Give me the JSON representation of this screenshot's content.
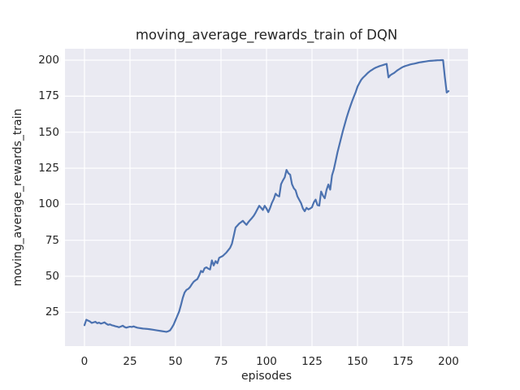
{
  "chart_data": {
    "type": "line",
    "title": "moving_average_rewards_train of DQN",
    "xlabel": "episodes",
    "ylabel": "moving_average_rewards_train",
    "xlim": [
      -10.7,
      210.7
    ],
    "ylim": [
      1.5,
      207.9
    ],
    "xticks": [
      0,
      25,
      50,
      75,
      100,
      125,
      150,
      175,
      200
    ],
    "yticks": [
      25,
      50,
      75,
      100,
      125,
      150,
      175,
      200
    ],
    "grid": true,
    "legend": "none",
    "colors": {
      "figure_background": "#FFFFFF",
      "axes_background": "#EAEAF2",
      "grid_color": "#FFFFFF",
      "line_color": "#4C72B0",
      "text_color": "#262626"
    },
    "series": [
      {
        "name": "DQN",
        "color": "#4C72B0",
        "points": [
          [
            0,
            16
          ],
          [
            1,
            19.8
          ],
          [
            2,
            19.2
          ],
          [
            3,
            18.6
          ],
          [
            4,
            17.6
          ],
          [
            5,
            18.0
          ],
          [
            6,
            18.4
          ],
          [
            7,
            17.4
          ],
          [
            8,
            17.8
          ],
          [
            9,
            17.1
          ],
          [
            10,
            17.5
          ],
          [
            11,
            18.0
          ],
          [
            12,
            17.0
          ],
          [
            13,
            16.3
          ],
          [
            14,
            16.6
          ],
          [
            15,
            16.0
          ],
          [
            16,
            15.7
          ],
          [
            17,
            15.3
          ],
          [
            18,
            15.0
          ],
          [
            19,
            14.6
          ],
          [
            20,
            15.1
          ],
          [
            21,
            15.7
          ],
          [
            22,
            14.8
          ],
          [
            23,
            14.3
          ],
          [
            24,
            14.7
          ],
          [
            25,
            15.0
          ],
          [
            26,
            14.8
          ],
          [
            27,
            15.2
          ],
          [
            28,
            14.7
          ],
          [
            29,
            14.3
          ],
          [
            30,
            14.1
          ],
          [
            31,
            13.9
          ],
          [
            32,
            13.7
          ],
          [
            33,
            13.6
          ],
          [
            34,
            13.5
          ],
          [
            36,
            13.2
          ],
          [
            38,
            12.8
          ],
          [
            40,
            12.4
          ],
          [
            42,
            12.0
          ],
          [
            44,
            11.6
          ],
          [
            45,
            11.4
          ],
          [
            46,
            11.8
          ],
          [
            47,
            12.4
          ],
          [
            48,
            14.3
          ],
          [
            49,
            16.5
          ],
          [
            50,
            19.5
          ],
          [
            51,
            22.5
          ],
          [
            52,
            25.5
          ],
          [
            53,
            30.0
          ],
          [
            54,
            35.0
          ],
          [
            55,
            38.7
          ],
          [
            56,
            40.5
          ],
          [
            57,
            41.2
          ],
          [
            58,
            42.5
          ],
          [
            59,
            44.5
          ],
          [
            60,
            46.2
          ],
          [
            61,
            47.2
          ],
          [
            62,
            48.0
          ],
          [
            63,
            50.5
          ],
          [
            64,
            53.7
          ],
          [
            65,
            52.8
          ],
          [
            66,
            55.6
          ],
          [
            67,
            56.2
          ],
          [
            68,
            55.3
          ],
          [
            69,
            54.7
          ],
          [
            70,
            61.0
          ],
          [
            71,
            57.5
          ],
          [
            72,
            60.5
          ],
          [
            73,
            59.0
          ],
          [
            74,
            62.8
          ],
          [
            76,
            64.1
          ],
          [
            78,
            66.5
          ],
          [
            80,
            69.7
          ],
          [
            81,
            72.5
          ],
          [
            82,
            78.0
          ],
          [
            83,
            83.8
          ],
          [
            84,
            85.2
          ],
          [
            85,
            86.6
          ],
          [
            86,
            87.5
          ],
          [
            87,
            88.5
          ],
          [
            88,
            87.0
          ],
          [
            89,
            85.7
          ],
          [
            90,
            87.5
          ],
          [
            91,
            89.0
          ],
          [
            92,
            90.4
          ],
          [
            93,
            92.0
          ],
          [
            94,
            94.1
          ],
          [
            95,
            96.5
          ],
          [
            96,
            98.9
          ],
          [
            97,
            97.5
          ],
          [
            98,
            96.0
          ],
          [
            99,
            98.9
          ],
          [
            100,
            97.0
          ],
          [
            101,
            94.5
          ],
          [
            102,
            97.5
          ],
          [
            103,
            101.0
          ],
          [
            104,
            103.6
          ],
          [
            105,
            107.3
          ],
          [
            106,
            106.0
          ],
          [
            107,
            105.4
          ],
          [
            108,
            113.9
          ],
          [
            109,
            116.5
          ],
          [
            110,
            118.6
          ],
          [
            111,
            123.8
          ],
          [
            112,
            121.5
          ],
          [
            113,
            120.5
          ],
          [
            114,
            113.9
          ],
          [
            115,
            111.1
          ],
          [
            116,
            109.6
          ],
          [
            117,
            105.4
          ],
          [
            118,
            103.0
          ],
          [
            119,
            100.7
          ],
          [
            120,
            97.0
          ],
          [
            121,
            95.1
          ],
          [
            122,
            97.5
          ],
          [
            123,
            96.4
          ],
          [
            124,
            97.0
          ],
          [
            125,
            97.9
          ],
          [
            126,
            101.3
          ],
          [
            127,
            103.2
          ],
          [
            128,
            99.4
          ],
          [
            129,
            99.0
          ],
          [
            130,
            108.8
          ],
          [
            131,
            106.0
          ],
          [
            132,
            104.1
          ],
          [
            133,
            110.0
          ],
          [
            134,
            113.7
          ],
          [
            135,
            110.1
          ],
          [
            136,
            120.0
          ],
          [
            137,
            124.2
          ],
          [
            138,
            130.0
          ],
          [
            139,
            136.0
          ],
          [
            140,
            141.0
          ],
          [
            141,
            146.0
          ],
          [
            142,
            151.0
          ],
          [
            143,
            155.5
          ],
          [
            144,
            160.0
          ],
          [
            145,
            164.0
          ],
          [
            146,
            167.8
          ],
          [
            147,
            171.4
          ],
          [
            148,
            174.7
          ],
          [
            149,
            177.8
          ],
          [
            150,
            181.6
          ],
          [
            151,
            184.0
          ],
          [
            152,
            186.3
          ],
          [
            153,
            187.8
          ],
          [
            154,
            189.0
          ],
          [
            155,
            190.3
          ],
          [
            156,
            191.5
          ],
          [
            157,
            192.5
          ],
          [
            158,
            193.3
          ],
          [
            159,
            194.1
          ],
          [
            160,
            194.8
          ],
          [
            161,
            195.3
          ],
          [
            162,
            195.8
          ],
          [
            163,
            196.2
          ],
          [
            164,
            196.6
          ],
          [
            165,
            197.0
          ],
          [
            166,
            197.4
          ],
          [
            167,
            188.0
          ],
          [
            168,
            189.5
          ],
          [
            169,
            190.3
          ],
          [
            170,
            191.0
          ],
          [
            171,
            192.0
          ],
          [
            172,
            193.0
          ],
          [
            173,
            193.8
          ],
          [
            174,
            194.6
          ],
          [
            175,
            195.3
          ],
          [
            176,
            195.8
          ],
          [
            177,
            196.2
          ],
          [
            178,
            196.6
          ],
          [
            179,
            197.0
          ],
          [
            180,
            197.3
          ],
          [
            181,
            197.5
          ],
          [
            182,
            197.8
          ],
          [
            183,
            198.1
          ],
          [
            184,
            198.4
          ],
          [
            185,
            198.6
          ],
          [
            186,
            198.8
          ],
          [
            187,
            199.0
          ],
          [
            188,
            199.2
          ],
          [
            189,
            199.4
          ],
          [
            190,
            199.5
          ],
          [
            191,
            199.6
          ],
          [
            192,
            199.7
          ],
          [
            193,
            199.8
          ],
          [
            194,
            199.9
          ],
          [
            195,
            199.9
          ],
          [
            196,
            200.0
          ],
          [
            197,
            200.0
          ],
          [
            198,
            188.0
          ],
          [
            199,
            177.5
          ],
          [
            200,
            178.5
          ]
        ]
      }
    ]
  }
}
